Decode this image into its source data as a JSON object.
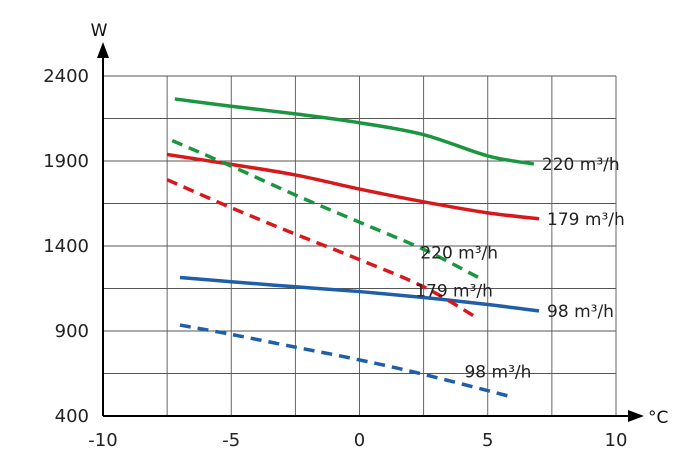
{
  "chart_data": {
    "type": "line",
    "title": "",
    "xlabel": "°C",
    "ylabel": "W",
    "xlim": [
      -10,
      10
    ],
    "ylim": [
      400,
      2400
    ],
    "x_ticks": [
      -10,
      -5,
      0,
      5,
      10
    ],
    "x_tick_labels": [
      "-10",
      "-5",
      "0",
      "5",
      "10"
    ],
    "y_ticks": [
      400,
      900,
      1400,
      1900,
      2400
    ],
    "y_tick_labels": [
      "400",
      "900",
      "1400",
      "1900",
      "2400"
    ],
    "grid": true,
    "series": [
      {
        "name": "220 m³/h",
        "label": "220 m³/h",
        "color": "#1a9641",
        "style": "solid",
        "x": [
          -7.2,
          -5,
          -2.5,
          0,
          2.5,
          5,
          6.8
        ],
        "y": [
          2265,
          2222,
          2177,
          2125,
          2055,
          1930,
          1882
        ]
      },
      {
        "name": "179 m³/h",
        "label": "179 m³/h",
        "color": "#d7191c",
        "style": "solid",
        "x": [
          -7.5,
          -5,
          -2.5,
          0,
          2.5,
          5,
          7
        ],
        "y": [
          1938,
          1880,
          1818,
          1735,
          1660,
          1595,
          1560
        ]
      },
      {
        "name": "98 m³/h",
        "label": "98 m³/h",
        "color": "#1f5fa8",
        "style": "solid",
        "x": [
          -7,
          -5,
          -2.5,
          0,
          2.5,
          5,
          7
        ],
        "y": [
          1215,
          1190,
          1160,
          1132,
          1097,
          1056,
          1018
        ]
      },
      {
        "name": "220 m³/h",
        "label": "220 m³/h",
        "color": "#1a9641",
        "style": "dashed",
        "x": [
          -7.3,
          -5,
          -2.5,
          0,
          2.5,
          4.7
        ],
        "y": [
          2020,
          1870,
          1700,
          1540,
          1380,
          1210
        ]
      },
      {
        "name": "179 m³/h",
        "label": "179 m³/h",
        "color": "#d7191c",
        "style": "dashed",
        "x": [
          -7.5,
          -5,
          -2.5,
          0,
          2.5,
          4.5
        ],
        "y": [
          1790,
          1625,
          1470,
          1320,
          1160,
          985
        ]
      },
      {
        "name": "98 m³/h",
        "label": "98 m³/h",
        "color": "#1f5fa8",
        "style": "dashed",
        "x": [
          -7,
          -5,
          -2.5,
          0,
          2.5,
          6
        ],
        "y": [
          935,
          880,
          805,
          730,
          645,
          510
        ]
      }
    ]
  }
}
